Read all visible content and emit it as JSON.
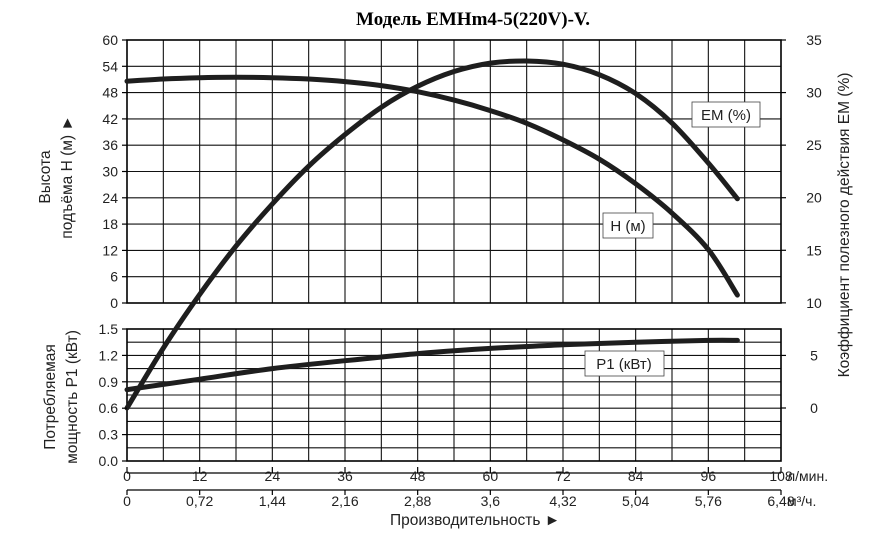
{
  "title": "Модель EMHm4-5(220V)-V.",
  "chart_data": {
    "type": "line",
    "title": "Модель EMHm4-5(220V)-V.",
    "x_axis": {
      "label": "Производительность ►",
      "unit_lpm": "л/мин.",
      "unit_m3h": "м³/ч.",
      "range": [
        0,
        108
      ],
      "ticks_lpm": [
        "0",
        "12",
        "24",
        "36",
        "48",
        "60",
        "72",
        "84",
        "96",
        "108"
      ],
      "ticks_m3h": [
        "0",
        "0,72",
        "1,44",
        "2,16",
        "2,88",
        "3,6",
        "4,32",
        "5,04",
        "5,76",
        "6,48"
      ]
    },
    "y_axis_head": {
      "label_line1": "Высота",
      "label_line2": "подъёма H (м) ►",
      "range": [
        0,
        60
      ],
      "ticks": [
        "0",
        "6",
        "12",
        "18",
        "24",
        "30",
        "36",
        "42",
        "48",
        "54",
        "60"
      ]
    },
    "y_axis_power": {
      "label_line1": "Потребляемая",
      "label_line2": "мощность P1 (кВт)",
      "range": [
        0,
        1.5
      ],
      "ticks": [
        "0.0",
        "0.3",
        "0.6",
        "0.9",
        "1.2",
        "1.5"
      ]
    },
    "y_axis_eff": {
      "label": "Коэффициент полезного действия EM (%)",
      "range": [
        0,
        35
      ],
      "ticks": [
        "0",
        "5",
        "10",
        "15",
        "20",
        "25",
        "30",
        "35"
      ]
    },
    "series": [
      {
        "name": "H (м)",
        "axis": "head",
        "x": [
          0,
          6,
          12,
          18,
          24,
          30,
          36,
          42,
          48,
          54,
          60,
          66,
          72,
          78,
          84,
          90,
          96,
          100.8
        ],
        "y": [
          50.6,
          51.1,
          51.4,
          51.5,
          51.4,
          51.1,
          50.5,
          49.6,
          48.2,
          46.3,
          43.9,
          41.0,
          37.2,
          32.8,
          27.2,
          20.5,
          12.2,
          1.8
        ]
      },
      {
        "name": "EM (%)",
        "axis": "eff",
        "x": [
          0,
          6,
          12,
          18,
          24,
          30,
          36,
          42,
          48,
          54,
          60,
          66,
          72,
          78,
          84,
          90,
          96,
          100.8
        ],
        "y": [
          0,
          5.7,
          10.8,
          15.4,
          19.4,
          23.0,
          26.0,
          28.6,
          30.6,
          32.0,
          32.8,
          33.0,
          32.7,
          31.7,
          29.9,
          27.1,
          23.3,
          19.9
        ]
      },
      {
        "name": "P1 (кВт)",
        "axis": "power",
        "x": [
          0,
          12,
          24,
          36,
          48,
          60,
          72,
          84,
          96,
          100.8
        ],
        "y": [
          0.81,
          0.93,
          1.05,
          1.14,
          1.22,
          1.28,
          1.32,
          1.35,
          1.37,
          1.37
        ]
      }
    ],
    "grid": true
  }
}
